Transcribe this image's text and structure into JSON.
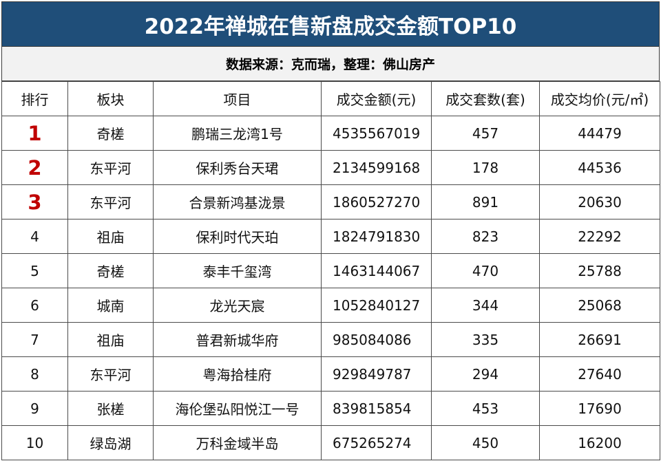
{
  "title": "2022年禅城在售新盘成交金额TOP10",
  "source": "数据来源：克而瑞，整理：佛山房产",
  "headers": [
    "排行",
    "板块",
    "项目",
    "成交金额(元)",
    "成交套数(套)",
    "成交均价(元/㎡)"
  ],
  "rows": [
    {
      "rank": "1",
      "district": "奇槎",
      "project": "鹏瑞三龙湾1号",
      "amount": "4535567019",
      "units": "457",
      "price": "44479"
    },
    {
      "rank": "2",
      "district": "东平河",
      "project": "保利秀台天珺",
      "amount": "2134599168",
      "units": "178",
      "price": "44536"
    },
    {
      "rank": "3",
      "district": "东平河",
      "project": "合景新鸿基泷景",
      "amount": "1860527270",
      "units": "891",
      "price": "20630"
    },
    {
      "rank": "4",
      "district": "祖庙",
      "project": "保利时代天珀",
      "amount": "1824791830",
      "units": "823",
      "price": "22292"
    },
    {
      "rank": "5",
      "district": "奇槎",
      "project": "泰丰千玺湾",
      "amount": "1463144067",
      "units": "470",
      "price": "25788"
    },
    {
      "rank": "6",
      "district": "城南",
      "project": "龙光天宸",
      "amount": "1052840127",
      "units": "344",
      "price": "25068"
    },
    {
      "rank": "7",
      "district": "祖庙",
      "project": "普君新城华府",
      "amount": "985084086",
      "units": "335",
      "price": "26691"
    },
    {
      "rank": "8",
      "district": "东平河",
      "project": "粤海拾桂府",
      "amount": "929849787",
      "units": "294",
      "price": "27640"
    },
    {
      "rank": "9",
      "district": "张槎",
      "project": "海伦堡弘阳悦江一号",
      "amount": "839815854",
      "units": "453",
      "price": "17690"
    },
    {
      "rank": "10",
      "district": "绿岛湖",
      "project": "万科金域半岛",
      "amount": "675265274",
      "units": "450",
      "price": "16200"
    }
  ],
  "colors": {
    "title_bg": "#1f4e79",
    "top_rank": "#c00000",
    "subtitle_bg": "#f2f2f2"
  }
}
